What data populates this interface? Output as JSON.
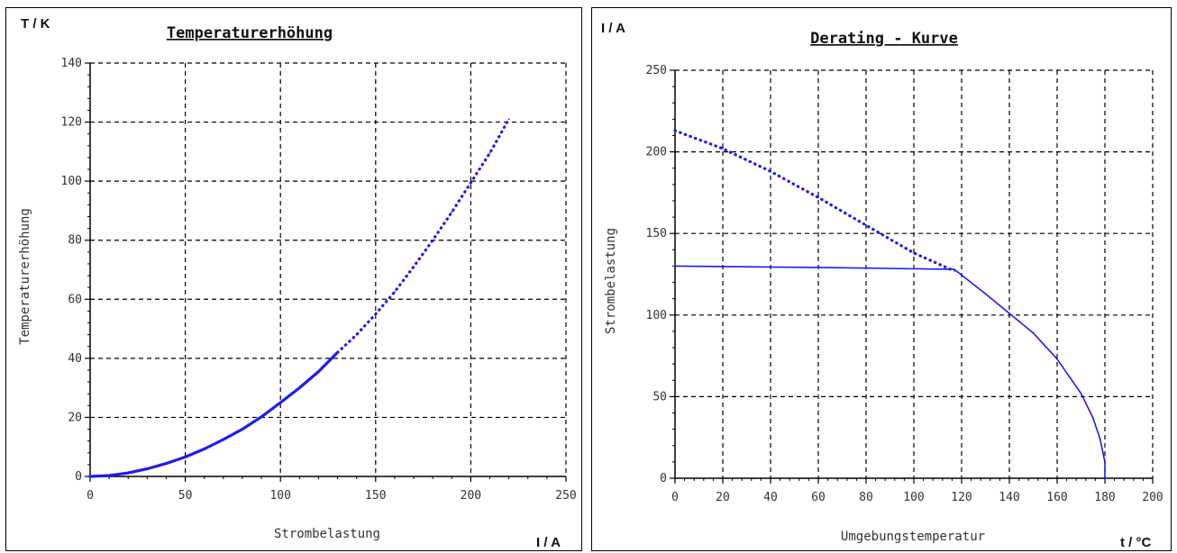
{
  "colors": {
    "curve": "#1c1cf0",
    "grid": "#000000",
    "text": "#333333"
  },
  "chart_data": [
    {
      "type": "line",
      "title": "Temperaturerhöhung",
      "xlabel": "Strombelastung",
      "ylabel": "Temperaturerhöhung",
      "x_unit": "I / A",
      "y_unit": "T / K",
      "xlim": [
        0,
        250
      ],
      "ylim": [
        0,
        140
      ],
      "xticks": [
        "0",
        "50",
        "100",
        "150",
        "200",
        "250"
      ],
      "yticks": [
        "0",
        "20",
        "40",
        "60",
        "80",
        "100",
        "120",
        "140"
      ],
      "grid": true,
      "series": [
        {
          "style": "solid",
          "x": [
            0,
            10,
            20,
            30,
            40,
            50,
            60,
            70,
            80,
            90,
            100,
            110,
            120,
            130
          ],
          "y": [
            0,
            0.3,
            1.2,
            2.6,
            4.4,
            6.6,
            9.3,
            12.5,
            16.0,
            20.2,
            25.0,
            30.0,
            35.5,
            42.0
          ]
        },
        {
          "style": "dotted",
          "x": [
            130,
            140,
            150,
            160,
            170,
            180,
            190,
            200,
            210,
            220
          ],
          "y": [
            42.0,
            48.0,
            55.0,
            62.5,
            71.0,
            80.0,
            89.5,
            99.5,
            109.5,
            121.0
          ]
        }
      ]
    },
    {
      "type": "line",
      "title": "Derating - Kurve",
      "xlabel": "Umgebungstemperatur",
      "ylabel": "Strombelastung",
      "x_unit": "t / °C",
      "y_unit": "I / A",
      "xlim": [
        0,
        200
      ],
      "ylim": [
        0,
        250
      ],
      "xticks": [
        "0",
        "20",
        "40",
        "60",
        "80",
        "100",
        "120",
        "140",
        "160",
        "180",
        "200"
      ],
      "yticks": [
        "0",
        "50",
        "100",
        "150",
        "200",
        "250"
      ],
      "grid": true,
      "series": [
        {
          "style": "dotted",
          "x": [
            0,
            20,
            40,
            60,
            80,
            100,
            117
          ],
          "y": [
            213,
            202,
            188,
            172,
            155,
            138,
            127
          ]
        },
        {
          "style": "solid",
          "x": [
            0,
            70,
            117,
            130,
            140,
            150,
            160,
            170,
            175,
            178,
            180,
            180
          ],
          "y": [
            130,
            129,
            128,
            113,
            101,
            89,
            73,
            52,
            37,
            24,
            10,
            0
          ]
        }
      ]
    }
  ]
}
